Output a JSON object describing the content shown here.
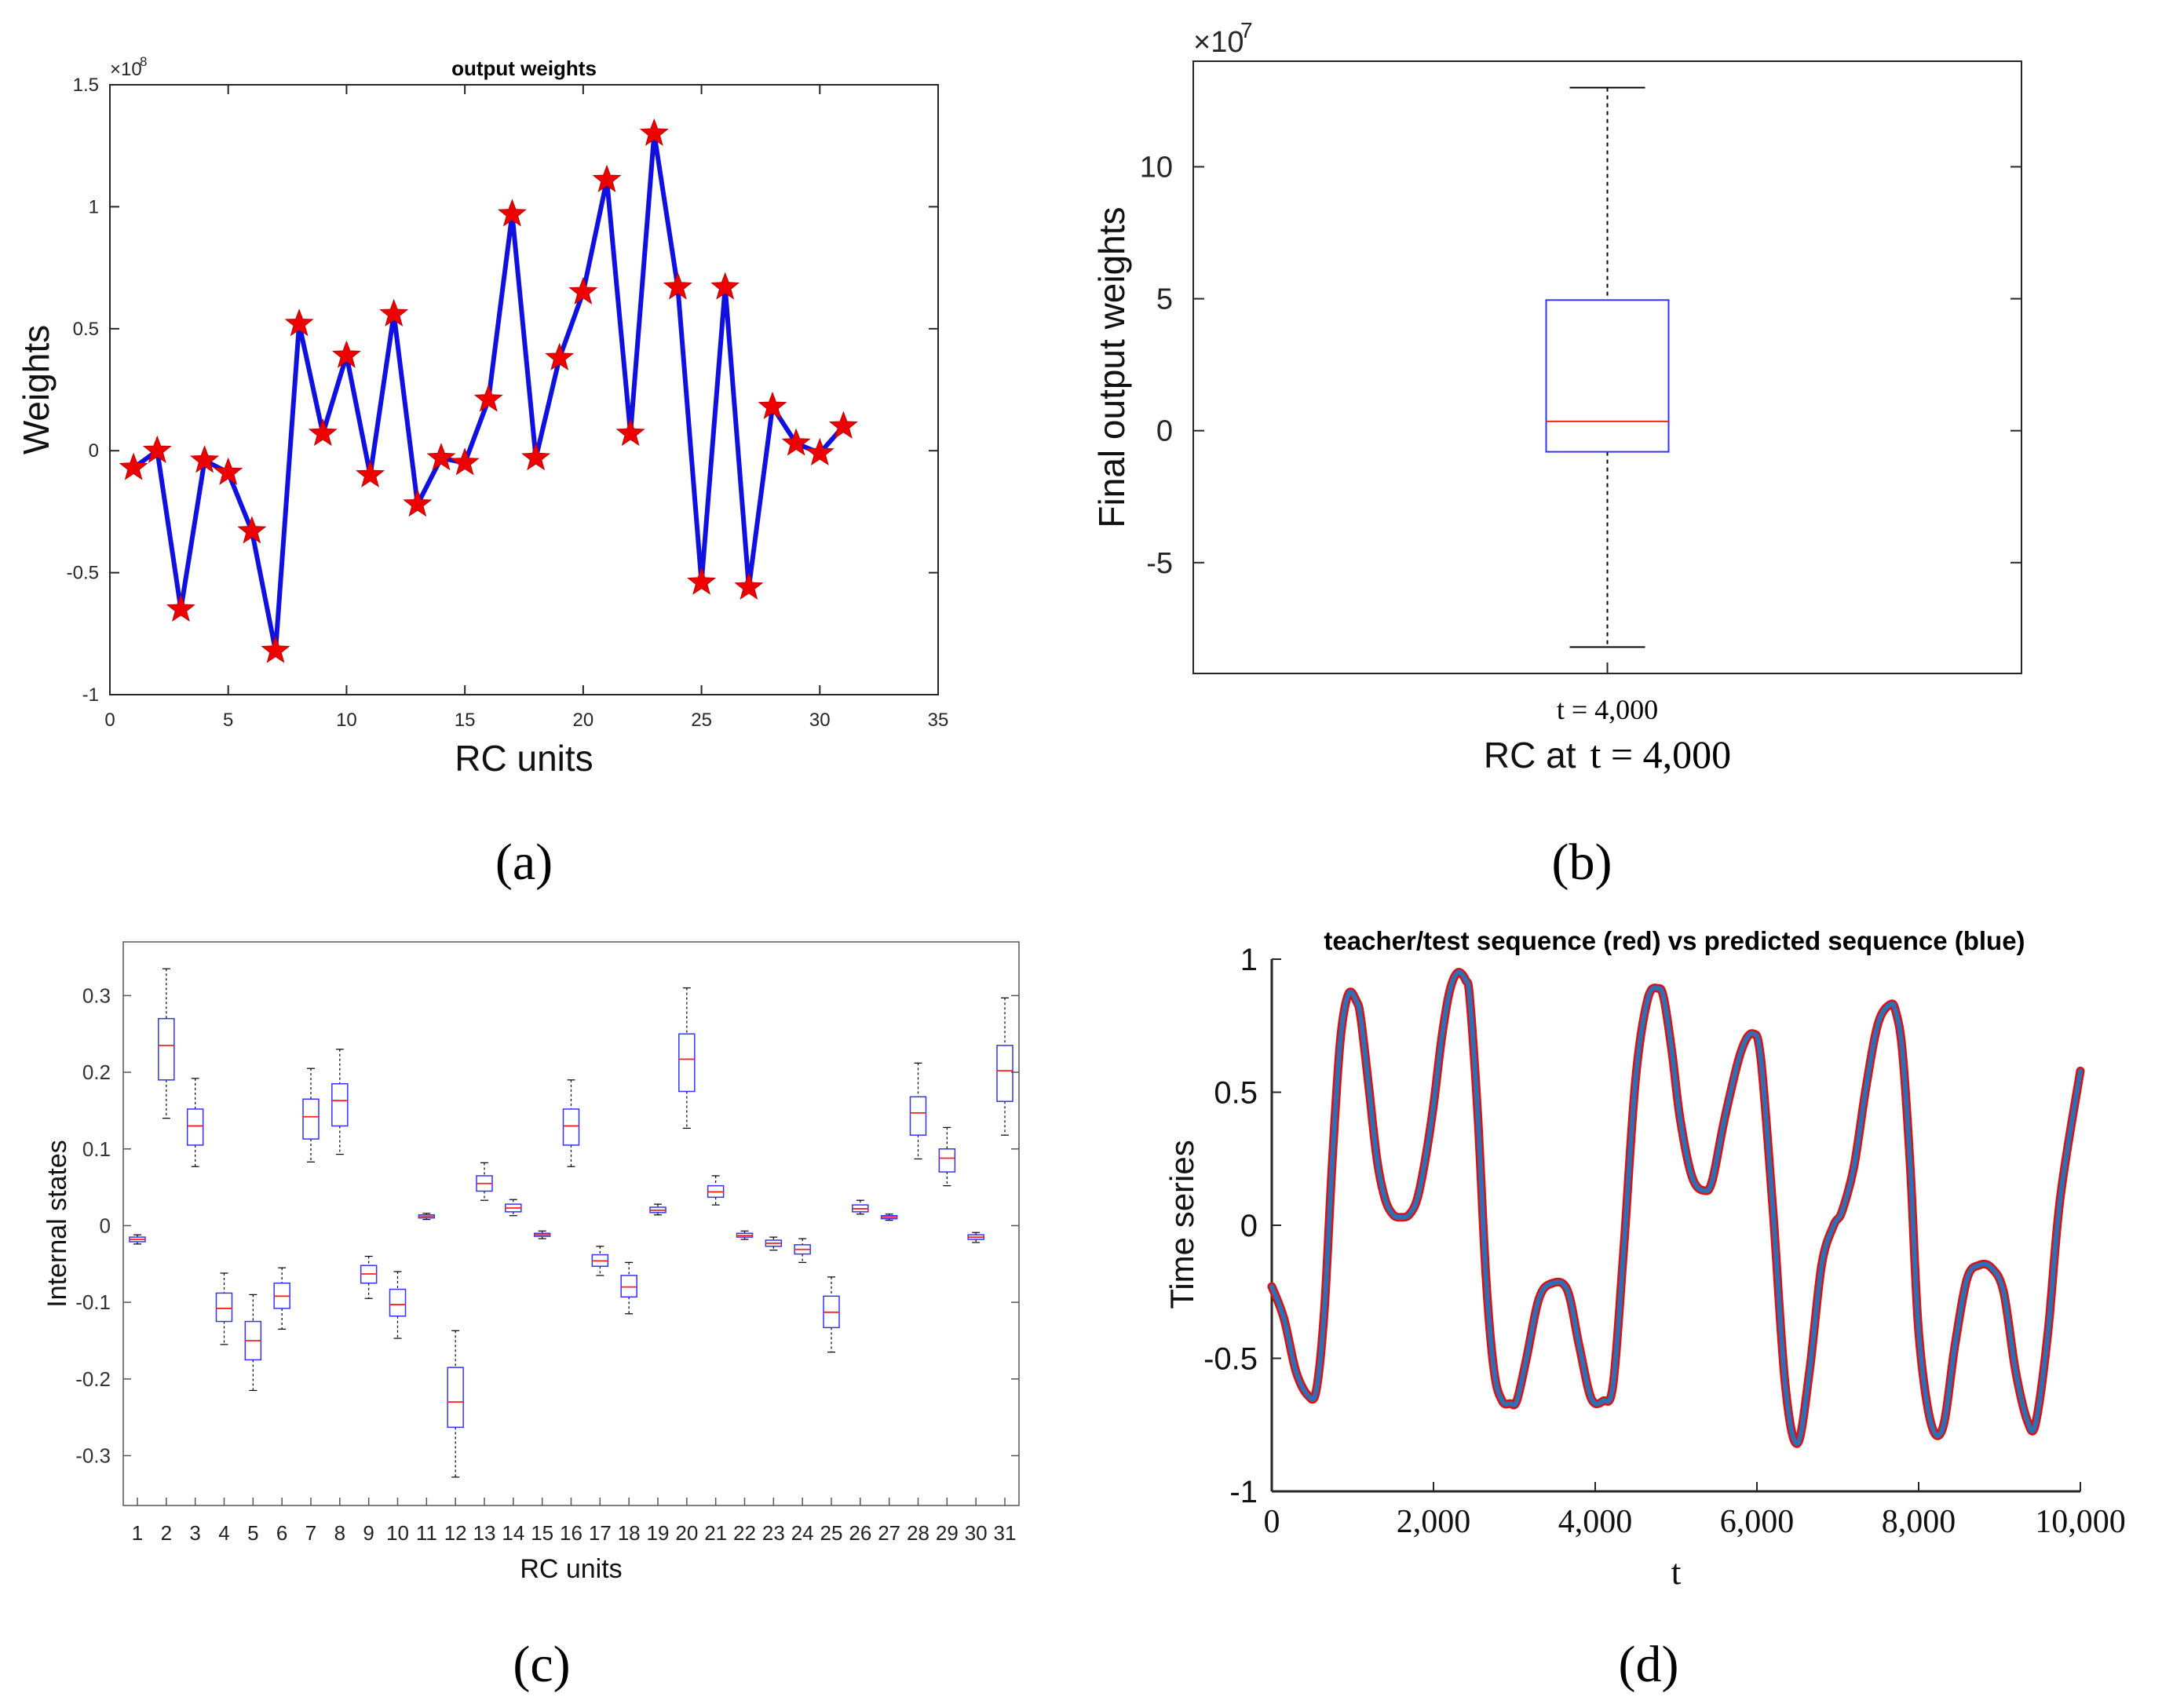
{
  "colors": {
    "line_blue": "#1010e0",
    "marker_red": "#ee0000",
    "box_blue": "#3333ff",
    "median_red": "#ff2020",
    "teacher_red": "#dd1111",
    "predicted_blue": "#2f6fb5",
    "axis": "#262626"
  },
  "chart_data": [
    {
      "panel": "a",
      "panel_label": "(a)",
      "type": "line",
      "title": "output weights",
      "xlabel": "RC units",
      "ylabel": "Weights",
      "exponent_prefix": "×10",
      "exponent_power": "8",
      "xlim": [
        0,
        35
      ],
      "ylim": [
        -1,
        1.5
      ],
      "xticks": [
        0,
        5,
        10,
        15,
        20,
        25,
        30,
        35
      ],
      "xtick_labels": [
        "0",
        "5",
        "10",
        "15",
        "20",
        "25",
        "30",
        "35"
      ],
      "yticks": [
        -1,
        -0.5,
        0,
        0.5,
        1,
        1.5
      ],
      "ytick_labels": [
        "-1",
        "-0.5",
        "0",
        "0.5",
        "1",
        "1.5"
      ],
      "x": [
        1,
        2,
        3,
        4,
        5,
        6,
        7,
        8,
        9,
        10,
        11,
        12,
        13,
        14,
        15,
        16,
        17,
        18,
        19,
        20,
        21,
        22,
        23,
        24,
        25,
        26,
        27,
        28,
        29,
        30,
        31
      ],
      "values": [
        -0.07,
        0.0,
        -0.65,
        -0.04,
        -0.09,
        -0.33,
        -0.82,
        0.52,
        0.07,
        0.39,
        -0.1,
        0.56,
        -0.22,
        -0.03,
        -0.05,
        0.21,
        0.97,
        -0.03,
        0.38,
        0.65,
        1.11,
        0.07,
        1.3,
        0.67,
        -0.54,
        0.67,
        -0.56,
        0.18,
        0.03,
        -0.01,
        0.1
      ],
      "marker": "pentagram"
    },
    {
      "panel": "b",
      "panel_label": "(b)",
      "type": "boxplot",
      "xlabel_prefix": "RC at",
      "xlabel_time": "t = 4,000",
      "ylabel": "Final output weights",
      "exponent_prefix": "×10",
      "exponent_power": "7",
      "ylim": [
        -9.2,
        14
      ],
      "yticks": [
        -5,
        0,
        5,
        10
      ],
      "ytick_labels": [
        "-5",
        "0",
        "5",
        "10"
      ],
      "category": "t = 4,000",
      "box": {
        "whisker_low": -8.2,
        "q1": -0.8,
        "median": 0.35,
        "q3": 4.95,
        "whisker_high": 13.0
      }
    },
    {
      "panel": "c",
      "panel_label": "(c)",
      "type": "boxplot",
      "xlabel": "RC units",
      "ylabel": "Internal states",
      "ylim": [
        -0.365,
        0.37
      ],
      "yticks": [
        -0.3,
        -0.2,
        -0.1,
        0,
        0.1,
        0.2,
        0.3
      ],
      "ytick_labels": [
        "-0.3",
        "-0.2",
        "-0.1",
        "0",
        "0.1",
        "0.2",
        "0.3"
      ],
      "categories": [
        "1",
        "2",
        "3",
        "4",
        "5",
        "6",
        "7",
        "8",
        "9",
        "10",
        "11",
        "12",
        "13",
        "14",
        "15",
        "16",
        "17",
        "18",
        "19",
        "20",
        "21",
        "22",
        "23",
        "24",
        "25",
        "26",
        "27",
        "28",
        "29",
        "30",
        "31"
      ],
      "boxes": [
        {
          "min": -0.024,
          "q1": -0.021,
          "median": -0.018,
          "q3": -0.015,
          "max": -0.012
        },
        {
          "min": 0.14,
          "q1": 0.19,
          "median": 0.235,
          "q3": 0.27,
          "max": 0.335
        },
        {
          "min": 0.077,
          "q1": 0.105,
          "median": 0.13,
          "q3": 0.152,
          "max": 0.192
        },
        {
          "min": -0.155,
          "q1": -0.125,
          "median": -0.108,
          "q3": -0.088,
          "max": -0.062
        },
        {
          "min": -0.215,
          "q1": -0.175,
          "median": -0.15,
          "q3": -0.125,
          "max": -0.09
        },
        {
          "min": -0.135,
          "q1": -0.108,
          "median": -0.092,
          "q3": -0.075,
          "max": -0.055
        },
        {
          "min": 0.083,
          "q1": 0.113,
          "median": 0.142,
          "q3": 0.165,
          "max": 0.205
        },
        {
          "min": 0.093,
          "q1": 0.13,
          "median": 0.163,
          "q3": 0.185,
          "max": 0.23
        },
        {
          "min": -0.095,
          "q1": -0.075,
          "median": -0.063,
          "q3": -0.052,
          "max": -0.04
        },
        {
          "min": -0.147,
          "q1": -0.118,
          "median": -0.103,
          "q3": -0.083,
          "max": -0.06
        },
        {
          "min": 0.008,
          "q1": 0.01,
          "median": 0.012,
          "q3": 0.014,
          "max": 0.016
        },
        {
          "min": -0.328,
          "q1": -0.263,
          "median": -0.23,
          "q3": -0.185,
          "max": -0.137
        },
        {
          "min": 0.033,
          "q1": 0.045,
          "median": 0.055,
          "q3": 0.065,
          "max": 0.082
        },
        {
          "min": 0.013,
          "q1": 0.018,
          "median": 0.023,
          "q3": 0.028,
          "max": 0.034
        },
        {
          "min": -0.017,
          "q1": -0.014,
          "median": -0.012,
          "q3": -0.01,
          "max": -0.007
        },
        {
          "min": 0.077,
          "q1": 0.105,
          "median": 0.13,
          "q3": 0.152,
          "max": 0.19
        },
        {
          "min": -0.065,
          "q1": -0.053,
          "median": -0.046,
          "q3": -0.038,
          "max": -0.027
        },
        {
          "min": -0.115,
          "q1": -0.093,
          "median": -0.08,
          "q3": -0.065,
          "max": -0.048
        },
        {
          "min": 0.014,
          "q1": 0.017,
          "median": 0.02,
          "q3": 0.024,
          "max": 0.028
        },
        {
          "min": 0.127,
          "q1": 0.175,
          "median": 0.217,
          "q3": 0.25,
          "max": 0.31
        },
        {
          "min": 0.027,
          "q1": 0.037,
          "median": 0.044,
          "q3": 0.052,
          "max": 0.065
        },
        {
          "min": -0.018,
          "q1": -0.015,
          "median": -0.013,
          "q3": -0.01,
          "max": -0.007
        },
        {
          "min": -0.032,
          "q1": -0.027,
          "median": -0.023,
          "q3": -0.019,
          "max": -0.015
        },
        {
          "min": -0.048,
          "q1": -0.037,
          "median": -0.031,
          "q3": -0.025,
          "max": -0.017
        },
        {
          "min": -0.165,
          "q1": -0.133,
          "median": -0.113,
          "q3": -0.092,
          "max": -0.067
        },
        {
          "min": 0.015,
          "q1": 0.018,
          "median": 0.022,
          "q3": 0.027,
          "max": 0.033
        },
        {
          "min": 0.007,
          "q1": 0.009,
          "median": 0.011,
          "q3": 0.013,
          "max": 0.015
        },
        {
          "min": 0.087,
          "q1": 0.118,
          "median": 0.147,
          "q3": 0.168,
          "max": 0.212
        },
        {
          "min": 0.052,
          "q1": 0.07,
          "median": 0.088,
          "q3": 0.1,
          "max": 0.128
        },
        {
          "min": -0.022,
          "q1": -0.018,
          "median": -0.015,
          "q3": -0.012,
          "max": -0.009
        },
        {
          "min": 0.118,
          "q1": 0.162,
          "median": 0.202,
          "q3": 0.235,
          "max": 0.297
        }
      ]
    },
    {
      "panel": "d",
      "panel_label": "(d)",
      "type": "line",
      "title": "teacher/test sequence (red) vs predicted sequence (blue)",
      "xlabel": "t",
      "ylabel": "Time series",
      "xlim": [
        0,
        10000
      ],
      "ylim": [
        -1,
        1
      ],
      "xticks": [
        0,
        2000,
        4000,
        6000,
        8000,
        10000
      ],
      "xtick_labels": [
        "0",
        "2,000",
        "4,000",
        "6,000",
        "8,000",
        "10,000"
      ],
      "yticks": [
        -1,
        -0.5,
        0,
        0.5,
        1
      ],
      "ytick_labels": [
        "-1",
        "-0.5",
        "0",
        "0.5",
        "1"
      ],
      "series": [
        {
          "name": "teacher/test sequence",
          "color": "red",
          "x": [
            0,
            150,
            300,
            450,
            550,
            650,
            750,
            850,
            950,
            1050,
            1100,
            1200,
            1300,
            1400,
            1500,
            1600,
            1700,
            1800,
            1900,
            2000,
            2100,
            2200,
            2300,
            2400,
            2450,
            2550,
            2650,
            2750,
            2850,
            2950,
            3030,
            3150,
            3300,
            3450,
            3650,
            3800,
            3950,
            4100,
            4220,
            4350,
            4500,
            4650,
            4780,
            4850,
            4950,
            5050,
            5200,
            5350,
            5450,
            5600,
            5800,
            5950,
            6050,
            6200,
            6350,
            6500,
            6650,
            6800,
            6950,
            7050,
            7200,
            7350,
            7500,
            7650,
            7720,
            7800,
            7900,
            8000,
            8150,
            8300,
            8450,
            8600,
            8750,
            8900,
            9050,
            9200,
            9350,
            9450,
            9600,
            9750,
            10000
          ],
          "y": [
            -0.23,
            -0.35,
            -0.55,
            -0.64,
            -0.62,
            -0.32,
            0.25,
            0.7,
            0.87,
            0.84,
            0.78,
            0.52,
            0.25,
            0.1,
            0.04,
            0.03,
            0.04,
            0.1,
            0.25,
            0.45,
            0.7,
            0.88,
            0.95,
            0.92,
            0.85,
            0.4,
            -0.2,
            -0.55,
            -0.66,
            -0.67,
            -0.66,
            -0.5,
            -0.28,
            -0.22,
            -0.24,
            -0.45,
            -0.65,
            -0.66,
            -0.6,
            -0.1,
            0.55,
            0.85,
            0.89,
            0.85,
            0.65,
            0.4,
            0.18,
            0.13,
            0.17,
            0.4,
            0.65,
            0.72,
            0.62,
            0.05,
            -0.6,
            -0.82,
            -0.55,
            -0.15,
            0.0,
            0.05,
            0.22,
            0.52,
            0.76,
            0.83,
            0.8,
            0.65,
            0.2,
            -0.4,
            -0.74,
            -0.76,
            -0.45,
            -0.2,
            -0.15,
            -0.16,
            -0.25,
            -0.55,
            -0.74,
            -0.74,
            -0.4,
            0.1,
            0.58
          ]
        },
        {
          "name": "predicted sequence",
          "color": "blue",
          "x": [
            0,
            150,
            300,
            450,
            550,
            650,
            750,
            850,
            950,
            1050,
            1100,
            1200,
            1300,
            1400,
            1500,
            1600,
            1700,
            1800,
            1900,
            2000,
            2100,
            2200,
            2300,
            2400,
            2450,
            2550,
            2650,
            2750,
            2850,
            2950,
            3030,
            3150,
            3300,
            3450,
            3650,
            3800,
            3950,
            4100,
            4220,
            4350,
            4500,
            4650,
            4780,
            4850,
            4950,
            5050,
            5200,
            5350,
            5450,
            5600,
            5800,
            5950,
            6050,
            6200,
            6350,
            6500,
            6650,
            6800,
            6950,
            7050,
            7200,
            7350,
            7500,
            7650,
            7720,
            7800,
            7900,
            8000,
            8150,
            8300,
            8450,
            8600,
            8750,
            8900,
            9050,
            9200,
            9350,
            9450,
            9600,
            9750,
            10000
          ],
          "y": [
            -0.23,
            -0.35,
            -0.55,
            -0.64,
            -0.62,
            -0.32,
            0.25,
            0.7,
            0.87,
            0.84,
            0.78,
            0.52,
            0.25,
            0.1,
            0.04,
            0.03,
            0.04,
            0.1,
            0.25,
            0.45,
            0.7,
            0.88,
            0.95,
            0.92,
            0.85,
            0.4,
            -0.2,
            -0.55,
            -0.66,
            -0.67,
            -0.66,
            -0.5,
            -0.28,
            -0.22,
            -0.24,
            -0.45,
            -0.65,
            -0.66,
            -0.6,
            -0.1,
            0.55,
            0.85,
            0.89,
            0.85,
            0.65,
            0.4,
            0.18,
            0.13,
            0.17,
            0.4,
            0.65,
            0.72,
            0.62,
            0.05,
            -0.6,
            -0.82,
            -0.55,
            -0.15,
            0.0,
            0.05,
            0.22,
            0.52,
            0.76,
            0.83,
            0.8,
            0.65,
            0.2,
            -0.4,
            -0.74,
            -0.76,
            -0.45,
            -0.2,
            -0.15,
            -0.16,
            -0.25,
            -0.55,
            -0.74,
            -0.74,
            -0.4,
            0.1,
            0.58
          ]
        }
      ]
    }
  ]
}
